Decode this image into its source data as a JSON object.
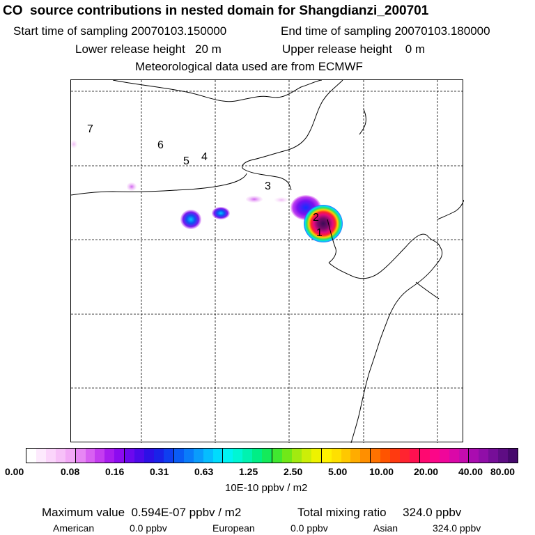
{
  "header": {
    "title": "CO  source contributions in nested domain for Shangdianzi_200701",
    "start_time": "Start time of sampling 20070103.150000",
    "end_time": "End time of sampling 20070103.180000",
    "lower_release": "Lower release height   20 m",
    "upper_release": "Upper release height    0 m",
    "met_data": "Meteorological data used are from ECMWF"
  },
  "map": {
    "location_labels": [
      "1",
      "2",
      "3",
      "4",
      "5",
      "6",
      "7"
    ]
  },
  "colorbar": {
    "ticks": [
      "0.00",
      "0.08",
      "0.16",
      "0.31",
      "0.63",
      "1.25",
      "2.50",
      "5.00",
      "10.00",
      "20.00",
      "40.00",
      "80.00"
    ],
    "units": "10E-10 ppbv / m2",
    "colors": [
      "#ffffff",
      "#fdeafd",
      "#fbd5fb",
      "#f7c0f8",
      "#f2a8f6",
      "#e786f4",
      "#d860f2",
      "#c43cf0",
      "#a81cef",
      "#8c0bf0",
      "#6c08ee",
      "#4d09ea",
      "#2d10e6",
      "#1a22e8",
      "#0f3ef0",
      "#0a5cf5",
      "#0a7cfa",
      "#0a9cfc",
      "#06bdfe",
      "#00dcfd",
      "#00f3f3",
      "#00f6d4",
      "#00f2b0",
      "#00ee86",
      "#14ea5a",
      "#40e830",
      "#70e818",
      "#a2ea10",
      "#ccee08",
      "#eef200",
      "#fff200",
      "#ffe000",
      "#ffc800",
      "#ffac00",
      "#ff8f00",
      "#ff7200",
      "#ff5400",
      "#ff3a10",
      "#ff2430",
      "#ff1050",
      "#ff0870",
      "#fc0688",
      "#f0069a",
      "#da08a8",
      "#c40cae",
      "#aa0cb0",
      "#900ea8",
      "#760e98",
      "#5e0d84",
      "#46096c"
    ]
  },
  "stats": {
    "max_value": "Maximum value  0.594E-07 ppbv / m2",
    "total_mixing": "Total mixing ratio     324.0 ppbv",
    "american_label": "American",
    "american_value": "0.0 ppbv",
    "european_label": "European",
    "european_value": "0.0 ppbv",
    "asian_label": "Asian",
    "asian_value": "324.0 ppbv"
  }
}
